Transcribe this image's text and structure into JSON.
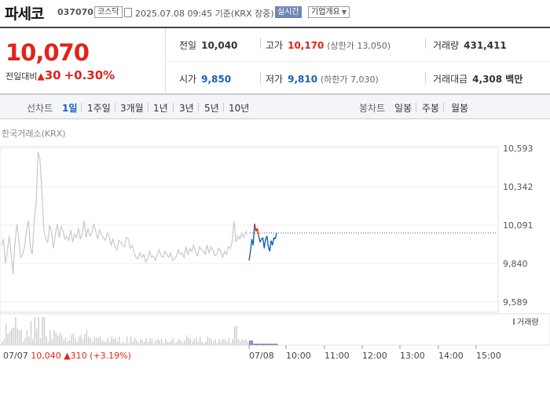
{
  "header": {
    "name": "파세코",
    "code": "037070",
    "market": "코스닥",
    "datetime": "2025.07.08 09:45 기준(KRX 장중)",
    "realtime_label": "실시간",
    "company_label": "기업개요"
  },
  "summary": {
    "price": "10,070",
    "change_label": "전일대비",
    "change_symbol": "▲",
    "change_value": "30",
    "change_pct": "+0.30%",
    "prev_label": "전일",
    "prev_value": "10,040",
    "high_label": "고가",
    "high_value": "10,170",
    "upper_limit": "(상한가 13,050)",
    "volume_label": "거래량",
    "volume_value": "431,411",
    "open_label": "시가",
    "open_value": "9,850",
    "low_label": "저가",
    "low_value": "9,810",
    "lower_limit": "(하한가 7,030)",
    "amount_label": "거래대금",
    "amount_value": "4,308 백만"
  },
  "tabs": {
    "line_label": "선차트",
    "line_items": [
      "1일",
      "1주일",
      "3개월",
      "1년",
      "3년",
      "5년",
      "10년"
    ],
    "active": "1일",
    "candle_label": "봉차트",
    "candle_items": [
      "일봉",
      "주봉",
      "월봉"
    ]
  },
  "chart": {
    "source": "한국거래소(KRX)",
    "volume_legend": "거래량",
    "prev_close_text": "07/07",
    "prev_close_value": "10,040",
    "prev_close_symbol": "▲",
    "prev_close_change": "310 (+3.19%)",
    "colors": {
      "prev_day": "#c8c8c8",
      "up": "#e2231a",
      "down": "#1a5fb4",
      "guide": "#555555"
    }
  },
  "chart_data": {
    "type": "line",
    "y_ticks": [
      "10,593",
      "10,342",
      "10,091",
      "9,840",
      "9,589"
    ],
    "ylim": [
      9589,
      10593
    ],
    "x_ticks": [
      "07/07",
      "07/08",
      "10:00",
      "11:00",
      "12:00",
      "13:00",
      "14:00",
      "15:00"
    ],
    "reference_line": 10040,
    "series": [
      {
        "values": [
          9960,
          10000,
          9840,
          9920,
          10020,
          9900,
          9770,
          9980,
          10100,
          9990,
          9880,
          9900,
          9950,
          10060,
          10120,
          9940,
          9900,
          10120,
          10240,
          10570,
          10520,
          10300,
          10060,
          10000,
          9980,
          10090,
          10050,
          9940,
          10030,
          10100,
          10010,
          10080,
          10050,
          10000,
          10020,
          9990,
          10060,
          9980,
          10030,
          10010,
          10070,
          10000,
          10040,
          10120,
          10010,
          10070,
          10020,
          10040,
          10100,
          10050,
          10000,
          10060,
          10030,
          10010,
          9990,
          10040,
          10020,
          9960,
          10000,
          9950,
          9930,
          9990,
          9980,
          9960,
          9950,
          10010,
          10000,
          9940,
          9960,
          9910,
          9880,
          9870,
          9910,
          9880,
          9900,
          9850,
          9870,
          9920,
          9880,
          9890,
          9860,
          9900,
          9930,
          9890,
          9880,
          9920,
          9900,
          9880,
          9910,
          9860,
          9870,
          9890,
          9930,
          9900,
          9910,
          9880,
          9950,
          9900,
          9940,
          9920,
          9960,
          9910,
          9890,
          9950,
          9930,
          9920,
          9900,
          9960,
          9910,
          9950,
          9930,
          9890,
          9900,
          9940,
          9920,
          9880,
          9920,
          9900,
          9950,
          9940,
          9980,
          10120,
          9980,
          10020,
          10000,
          10040,
          10010,
          10050,
          10030
        ]
      },
      {
        "values": [
          9860,
          9920,
          10000,
          9960,
          10100,
          10050,
          10070,
          10020,
          9980,
          10000,
          10010,
          9940,
          10000,
          10020,
          9950,
          9920,
          9990,
          9960,
          10010,
          10000,
          10040
        ]
      }
    ]
  }
}
